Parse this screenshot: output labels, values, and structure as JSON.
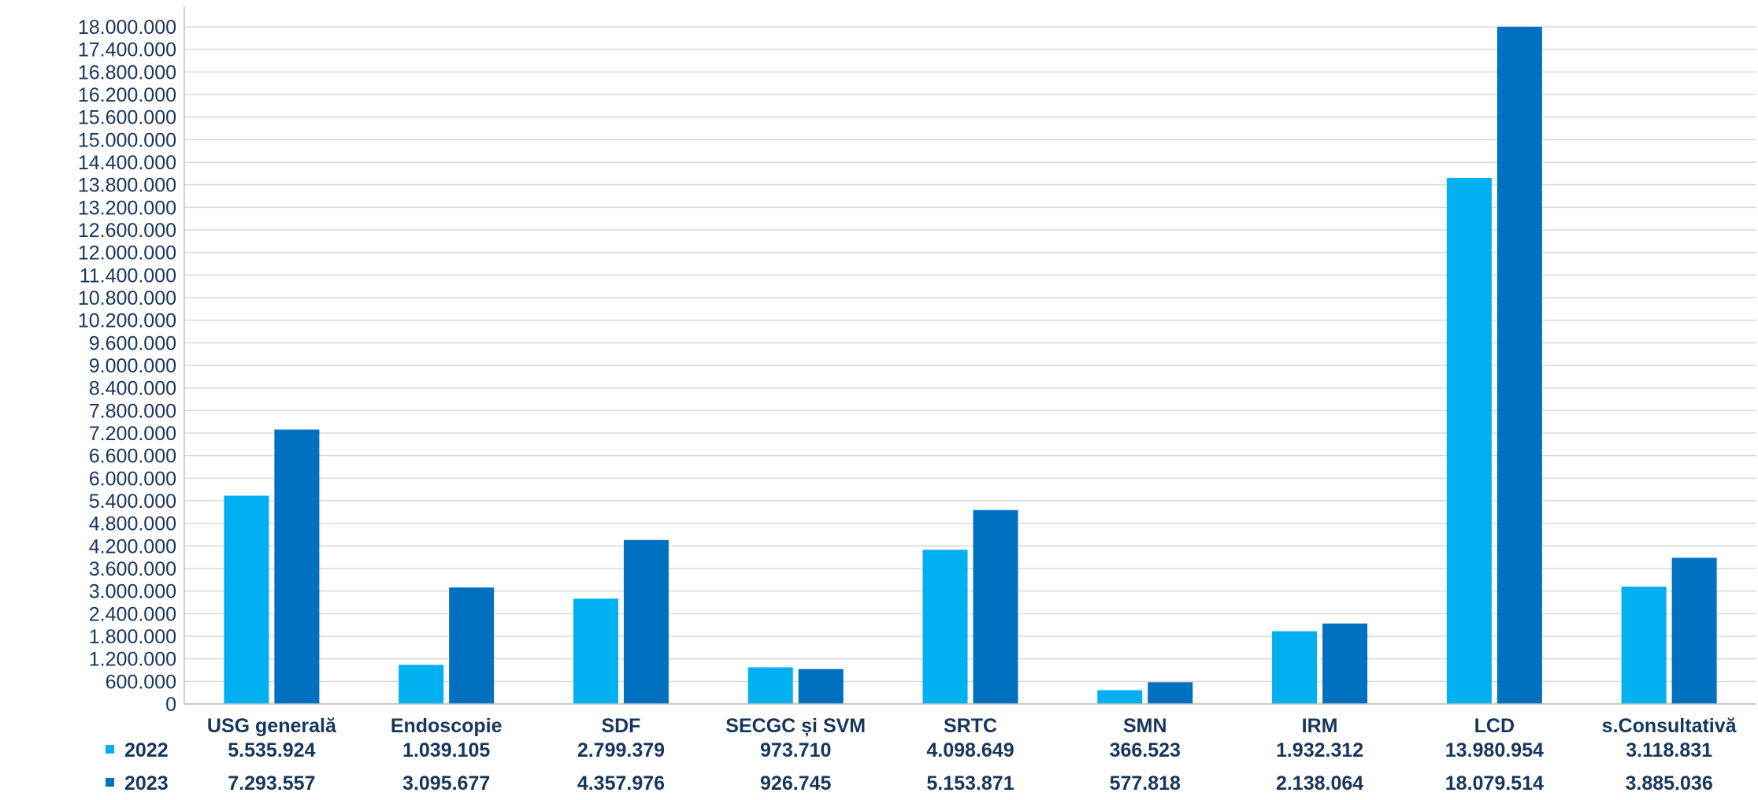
{
  "chart_data": {
    "type": "bar",
    "categories": [
      "USG generală",
      "Endoscopie",
      "SDF",
      "SECGC și SVM",
      "SRTC",
      "SMN",
      "IRM",
      "LCD",
      "s.Consultativă"
    ],
    "series": [
      {
        "name": "2022",
        "color": "#00b0f0",
        "values": [
          5535924,
          1039105,
          2799379,
          973710,
          4098649,
          366523,
          1932312,
          13980954,
          3118831
        ],
        "labels": [
          "5.535.924",
          "1.039.105",
          "2.799.379",
          "973.710",
          "4.098.649",
          "366.523",
          "1.932.312",
          "13.980.954",
          "3.118.831"
        ]
      },
      {
        "name": "2023",
        "color": "#0070c0",
        "values": [
          7293557,
          3095677,
          4357976,
          926745,
          5153871,
          577818,
          2138064,
          18079514,
          3885036
        ],
        "labels": [
          "7.293.557",
          "3.095.677",
          "4.357.976",
          "926.745",
          "5.153.871",
          "577.818",
          "2.138.064",
          "18.079.514",
          "3.885.036"
        ]
      }
    ],
    "ylim": [
      0,
      18000000
    ],
    "yticks": [
      0,
      600000,
      1200000,
      1800000,
      2400000,
      3000000,
      3600000,
      4200000,
      4800000,
      5400000,
      6000000,
      6600000,
      7200000,
      7800000,
      8400000,
      9000000,
      9600000,
      10200000,
      10800000,
      11400000,
      12000000,
      12600000,
      13200000,
      13800000,
      14400000,
      15000000,
      15600000,
      16200000,
      16800000,
      17400000,
      18000000
    ],
    "ytick_labels": [
      "0",
      "600.000",
      "1.200.000",
      "1.800.000",
      "2.400.000",
      "3.000.000",
      "3.600.000",
      "4.200.000",
      "4.800.000",
      "5.400.000",
      "6.000.000",
      "6.600.000",
      "7.200.000",
      "7.800.000",
      "8.400.000",
      "9.000.000",
      "9.600.000",
      "10.200.000",
      "10.800.000",
      "11.400.000",
      "12.000.000",
      "12.600.000",
      "13.200.000",
      "13.800.000",
      "14.400.000",
      "15.000.000",
      "15.600.000",
      "16.200.000",
      "16.800.000",
      "17.400.000",
      "18.000.000"
    ],
    "grid": true,
    "legend": "data-table"
  }
}
